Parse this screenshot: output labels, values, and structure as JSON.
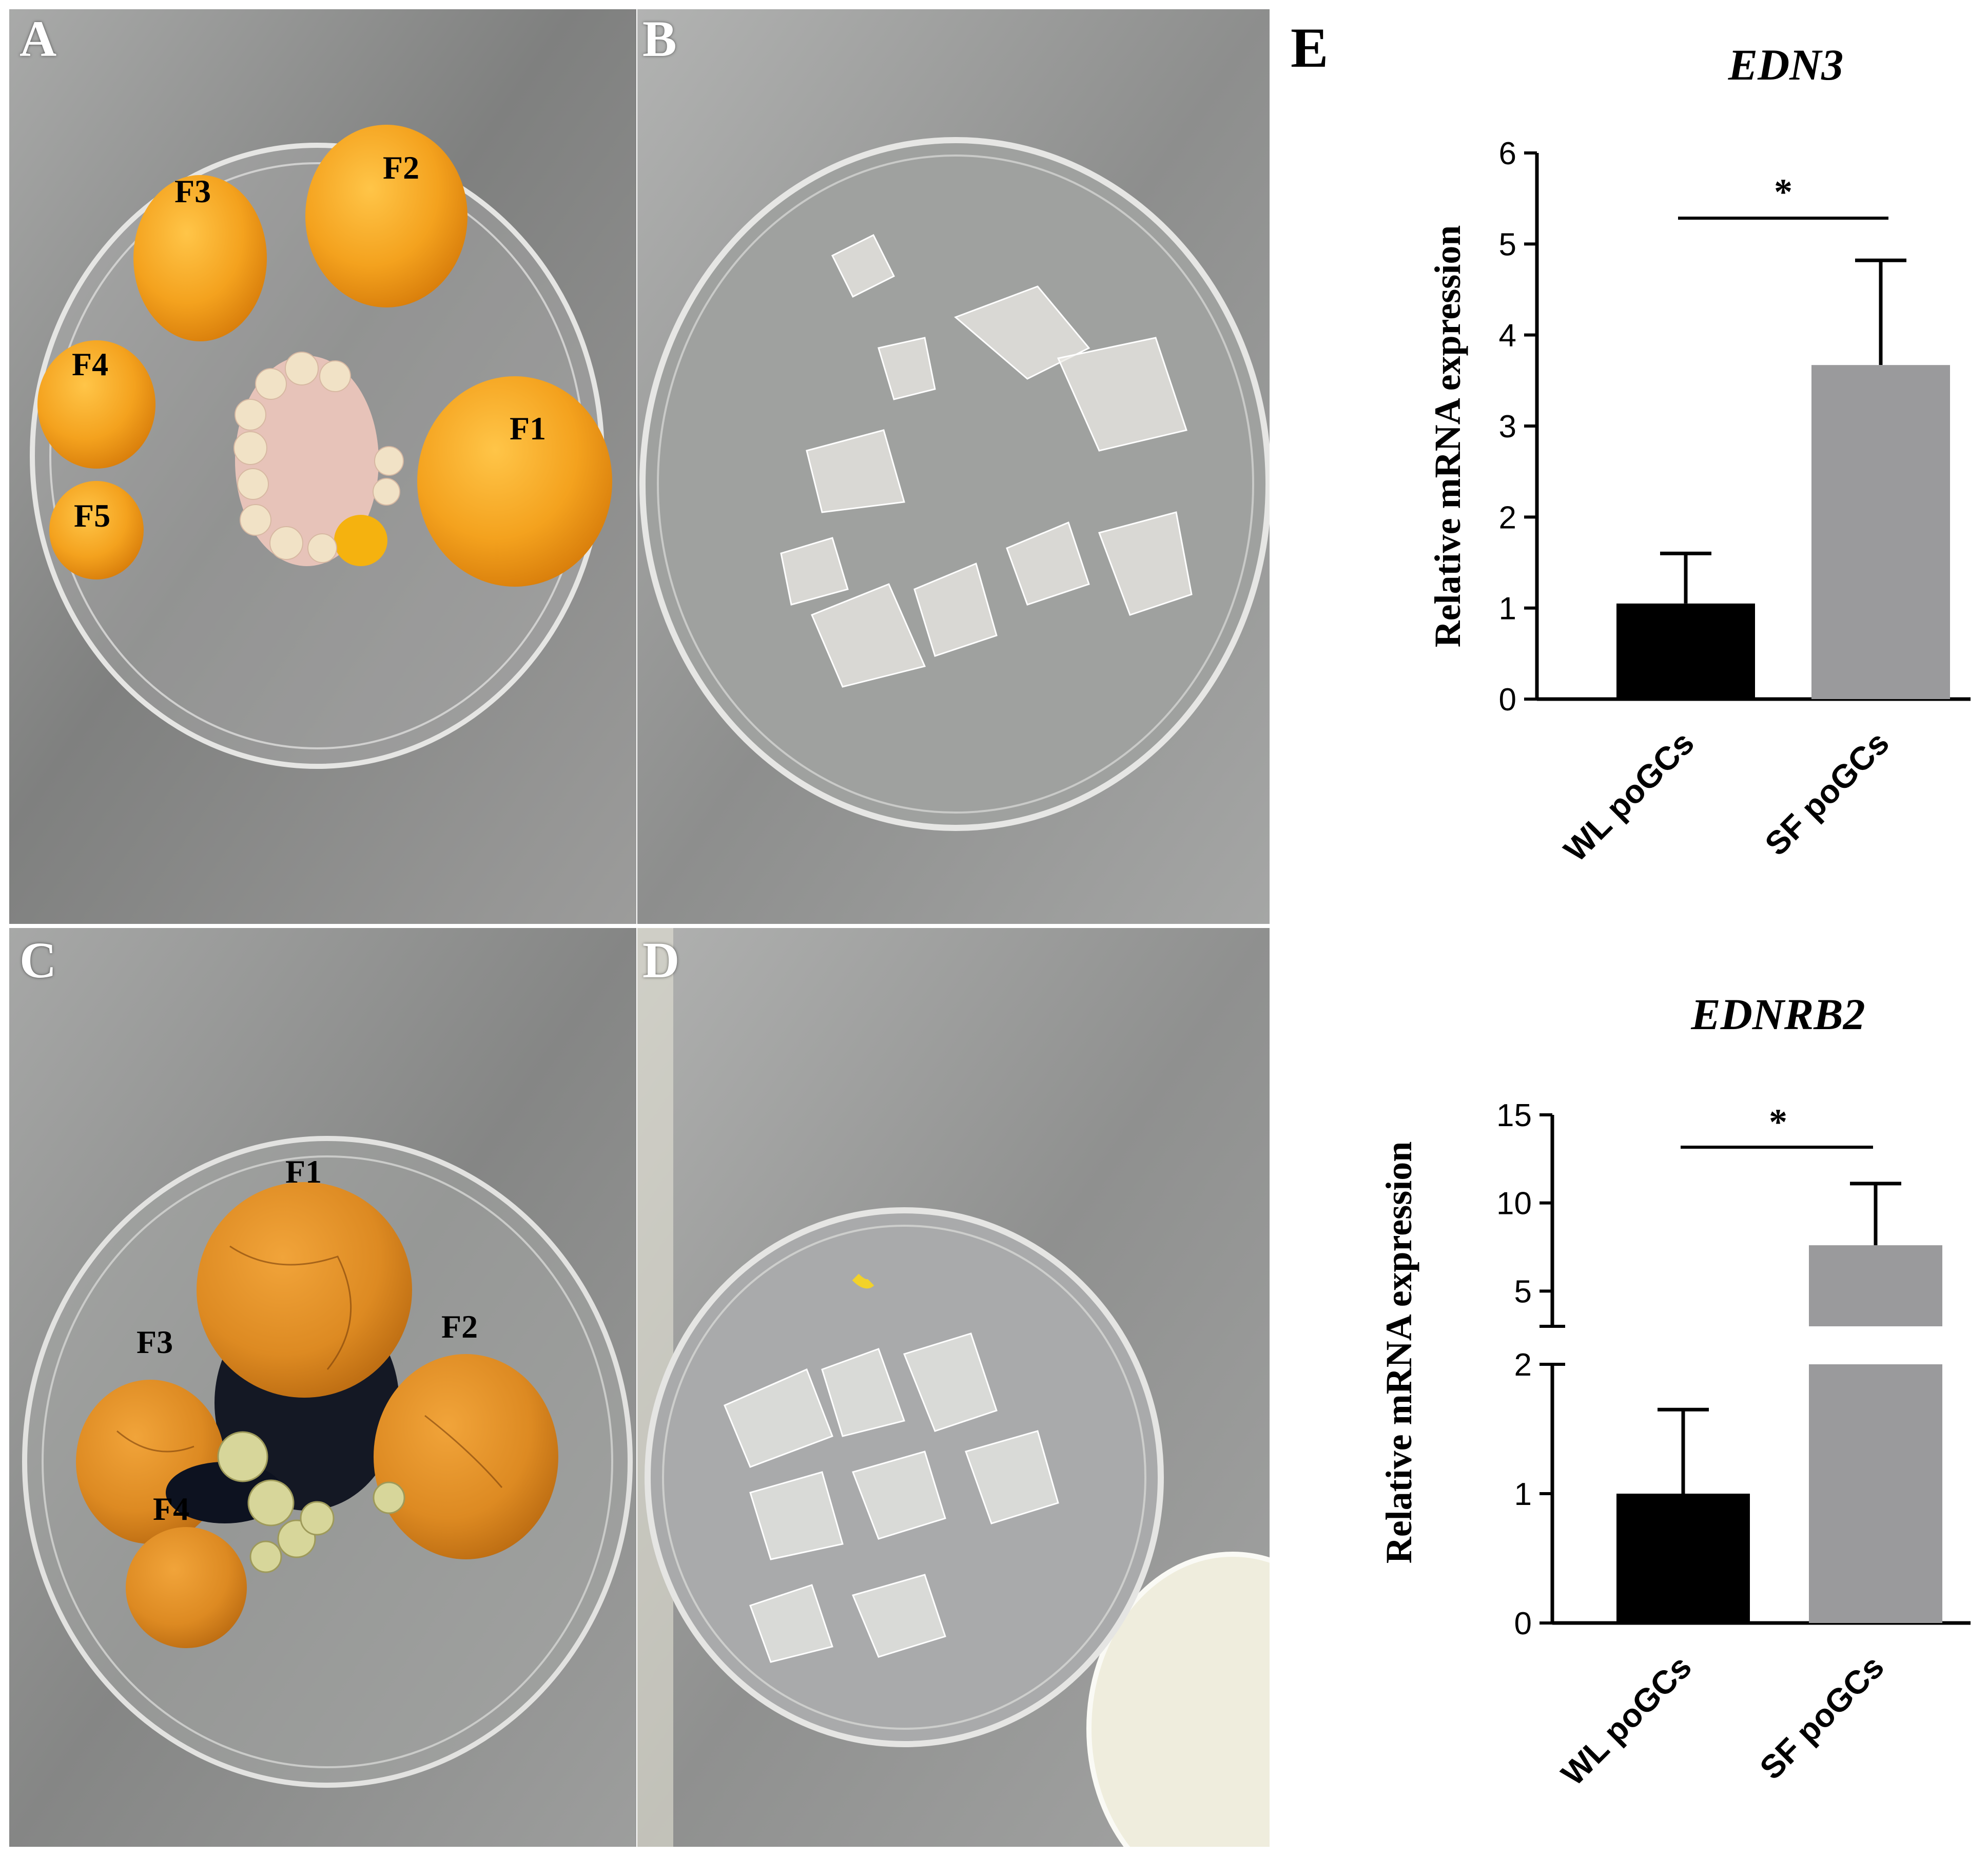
{
  "panels": {
    "a": {
      "letter": "A",
      "labels": [
        "F3",
        "F2",
        "F4",
        "F1",
        "F5"
      ]
    },
    "b": {
      "letter": "B"
    },
    "c": {
      "letter": "C",
      "labels": [
        "F1",
        "F3",
        "F2",
        "F4"
      ]
    },
    "d": {
      "letter": "D"
    },
    "e": {
      "letter": "E"
    }
  },
  "colors": {
    "yolk": "#f0a020",
    "bar_wl": "#000000",
    "bar_sf": "#9a9a9c",
    "steel": "#8a8a8a"
  },
  "chart_data": [
    {
      "type": "bar",
      "title": "EDN3",
      "ylabel": "Relative mRNA expression",
      "categories": [
        "WL poGCs",
        "SF poGCs"
      ],
      "values": [
        1.05,
        3.67
      ],
      "errors": [
        0.55,
        1.15
      ],
      "ylim": [
        0,
        6
      ],
      "yticks": [
        "0",
        "1",
        "2",
        "3",
        "4",
        "5",
        "6"
      ],
      "significance": "*"
    },
    {
      "type": "bar",
      "title": "EDNRB2",
      "ylabel": "Relative mRNA expression",
      "categories": [
        "WL poGCs",
        "SF poGCs"
      ],
      "values": [
        1.0,
        7.6
      ],
      "errors": [
        0.65,
        3.5
      ],
      "ylim_lower": [
        0,
        2
      ],
      "ylim_upper": [
        3,
        15
      ],
      "yticks_lower": [
        "0",
        "1",
        "2"
      ],
      "yticks_upper": [
        "5",
        "10",
        "15"
      ],
      "significance": "*"
    }
  ]
}
